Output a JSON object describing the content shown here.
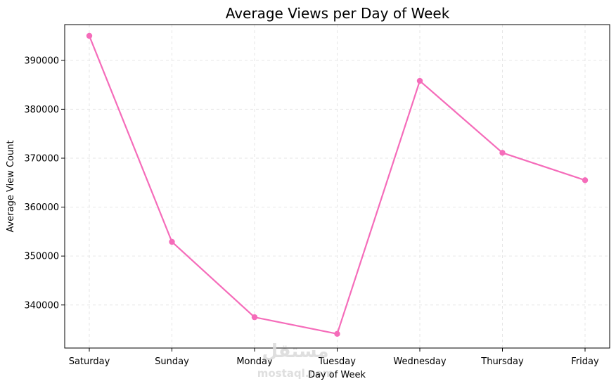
{
  "chart_data": {
    "type": "line",
    "title": "Average Views per Day of Week",
    "xlabel": "Day of Week",
    "ylabel": "Average View Count",
    "categories": [
      "Saturday",
      "Sunday",
      "Monday",
      "Tuesday",
      "Wednesday",
      "Thursday",
      "Friday"
    ],
    "series": [
      {
        "values": [
          395000,
          352900,
          337500,
          334100,
          385800,
          371100,
          365500
        ],
        "color": "#f56cba"
      }
    ],
    "ylim": [
      331200,
      397300
    ],
    "yticks": [
      340000,
      350000,
      360000,
      370000,
      380000,
      390000
    ],
    "grid": true,
    "marker": "circle"
  },
  "watermark": {
    "logo_text": "مستقل",
    "text": "mostaql.com"
  }
}
